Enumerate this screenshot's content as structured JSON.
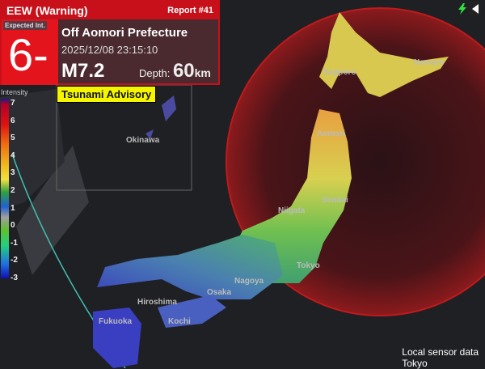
{
  "alert": {
    "title": "EEW (Warning)",
    "report": "Report #41",
    "expected_label": "Expected Int.",
    "expected_intensity": "6-",
    "location": "Off Aomori Prefecture",
    "datetime": "2025/12/08 23:15:10",
    "magnitude": "M7.2",
    "depth_label": "Depth:",
    "depth_value": "60",
    "depth_unit": "km",
    "tsunami": "Tsunami Advisory"
  },
  "legend": {
    "title": "Intensity",
    "ticks": [
      "7",
      "6",
      "5",
      "4",
      "3",
      "2",
      "1",
      "0",
      "-1",
      "-2",
      "-3"
    ]
  },
  "cities": [
    "Sapporo",
    "Nemuro",
    "Aomori",
    "Sendai",
    "Niigata",
    "Tokyo",
    "Nagoya",
    "Osaka",
    "Hiroshima",
    "Kochi",
    "Fukuoka",
    "Okinawa"
  ],
  "footer": {
    "line1": "Local sensor data",
    "line2": "Tokyo"
  },
  "colors": {
    "warning": "#c8101a",
    "tsunami": "#f5f500",
    "circle": "#8a1418"
  },
  "icons": [
    "lightning-icon",
    "collapse-arrow-icon"
  ]
}
